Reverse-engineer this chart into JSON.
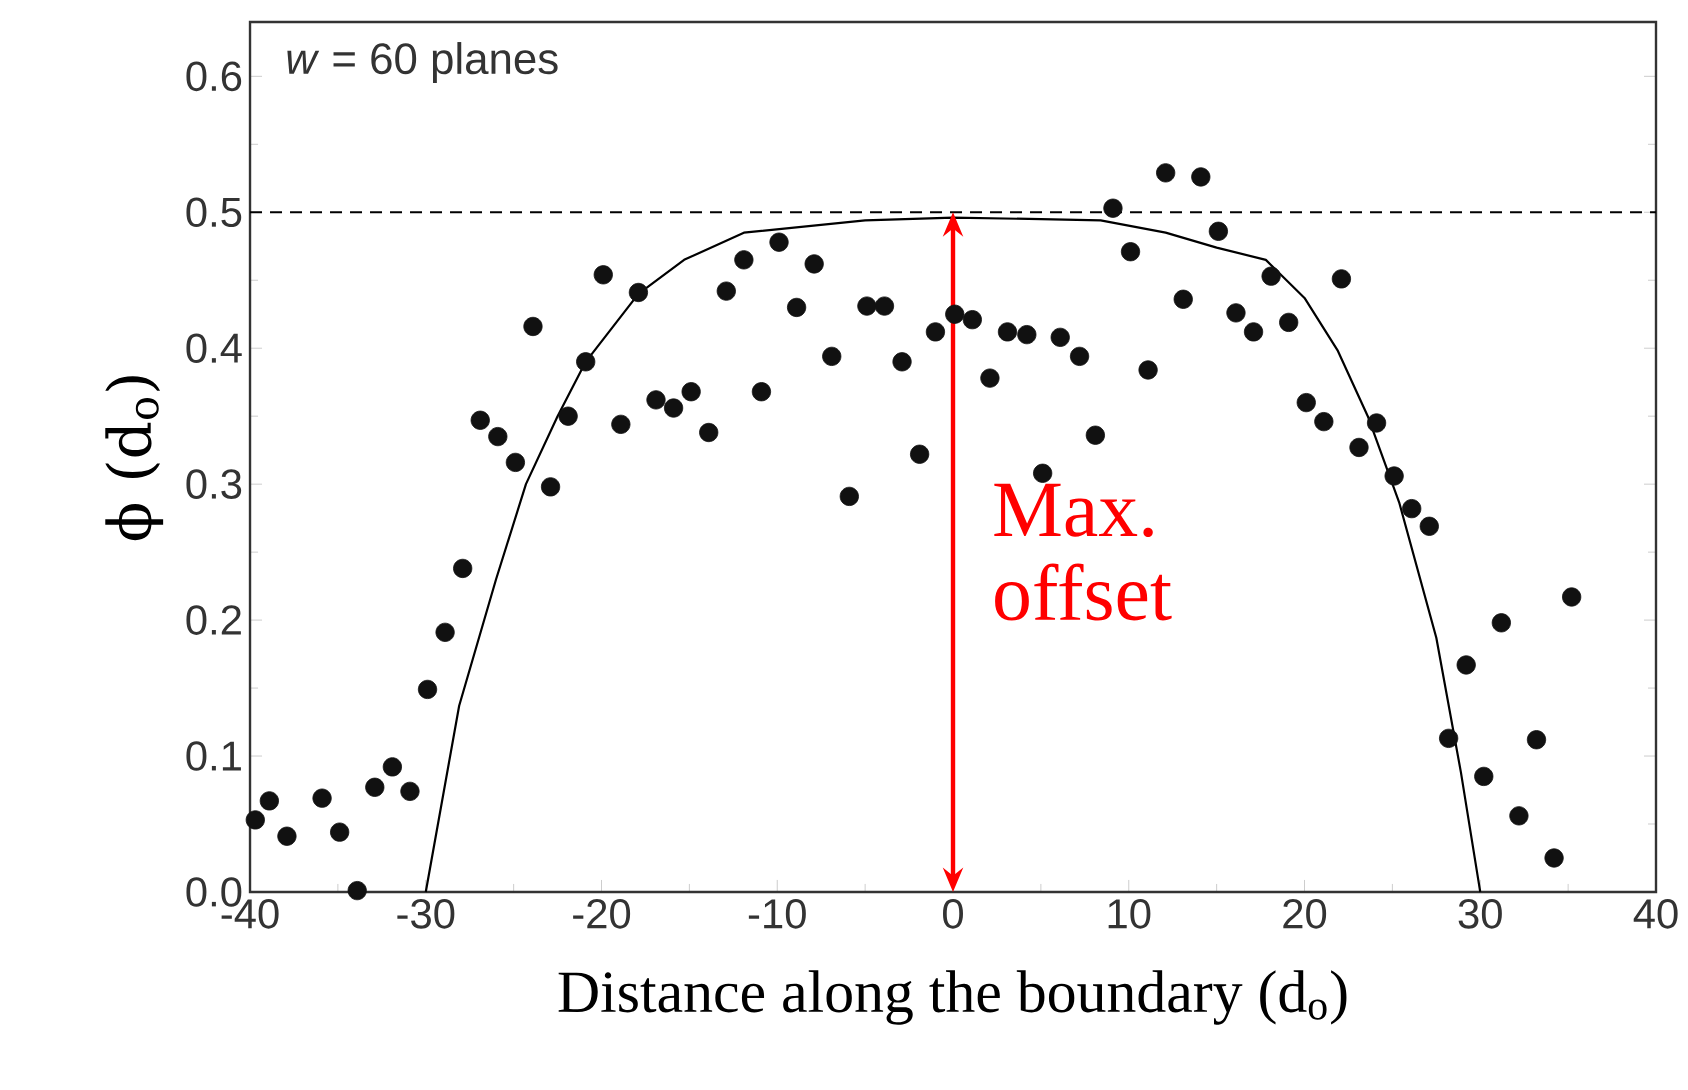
{
  "chart_data": {
    "type": "scatter",
    "xlabel": "Distance along the boundary (d$_{o}$)",
    "ylabel": "ϕ (d$_{o}$)",
    "xlim": [
      -40,
      40
    ],
    "ylim": [
      0,
      0.64
    ],
    "xticks": [
      -40,
      -30,
      -20,
      -10,
      0,
      10,
      20,
      30,
      40
    ],
    "yticks": [
      {
        "value": 0,
        "label": "0.0"
      },
      0.1,
      0.2,
      0.3,
      0.4,
      0.5,
      0.6
    ],
    "ref_lines": [
      {
        "axis": "y",
        "value": 0.5,
        "color": "#000000",
        "line_style": "dashed"
      }
    ],
    "annotations": [
      "*w* = 60 planes",
      "Max. offset"
    ],
    "series": [
      {
        "type": "scatter",
        "color": "#111111",
        "marker": "circle",
        "x": [
          -39.7,
          -38.9,
          -37.9,
          -35.9,
          -34.9,
          -33.9,
          -32.9,
          -31.9,
          -30.9,
          -29.9,
          -28.9,
          -27.9,
          -26.9,
          -25.9,
          -24.9,
          -23.9,
          -22.9,
          -21.9,
          -20.9,
          -19.9,
          -18.9,
          -17.9,
          -16.9,
          -15.9,
          -14.9,
          -13.9,
          -12.9,
          -11.9,
          -10.9,
          -9.9,
          -8.9,
          -7.9,
          -6.9,
          -5.9,
          -4.9,
          -3.9,
          -2.9,
          -1.9,
          -1.0,
          0.1,
          1.1,
          2.1,
          3.1,
          4.2,
          5.1,
          6.1,
          7.2,
          8.1,
          9.1,
          10.1,
          11.1,
          12.1,
          13.1,
          14.1,
          15.1,
          16.1,
          17.1,
          18.1,
          19.1,
          20.1,
          21.1,
          22.1,
          23.1,
          24.1,
          25.1,
          26.1,
          27.1,
          28.2,
          29.2,
          30.2,
          31.2,
          32.2,
          33.2,
          34.2,
          35.2
        ],
        "values": [
          0.053,
          0.067,
          0.041,
          0.069,
          0.044,
          0.001,
          0.077,
          0.092,
          0.074,
          0.149,
          0.191,
          0.238,
          0.347,
          0.335,
          0.316,
          0.416,
          0.298,
          0.35,
          0.39,
          0.454,
          0.344,
          0.441,
          0.362,
          0.356,
          0.368,
          0.338,
          0.442,
          0.465,
          0.368,
          0.478,
          0.43,
          0.462,
          0.394,
          0.291,
          0.431,
          0.431,
          0.39,
          0.322,
          0.412,
          0.425,
          0.421,
          0.378,
          0.412,
          0.41,
          0.308,
          0.408,
          0.394,
          0.336,
          0.503,
          0.471,
          0.384,
          0.529,
          0.436,
          0.526,
          0.486,
          0.426,
          0.412,
          0.453,
          0.419,
          0.36,
          0.346,
          0.451,
          0.327,
          0.345,
          0.306,
          0.282,
          0.269,
          0.113,
          0.167,
          0.085,
          0.198,
          0.056,
          0.112,
          0.025,
          0.217
        ]
      },
      {
        "type": "line",
        "color": "#000000",
        "marker": "none",
        "line_style": "solid",
        "x": [
          -30,
          -28.1,
          -26,
          -24.3,
          -22.5,
          -20.9,
          -17.9,
          -15.3,
          -11.9,
          -5,
          0,
          5,
          8.4,
          12.1,
          15,
          17.8,
          20,
          21.9,
          23.6,
          25.4,
          27.5,
          28.9,
          29.9,
          30
        ],
        "values": [
          0,
          0.137,
          0.23,
          0.3,
          0.35,
          0.39,
          0.44,
          0.465,
          0.485,
          0.494,
          0.496,
          0.495,
          0.494,
          0.485,
          0.474,
          0.465,
          0.437,
          0.398,
          0.35,
          0.286,
          0.187,
          0.088,
          0.008,
          0
        ]
      }
    ]
  }
}
